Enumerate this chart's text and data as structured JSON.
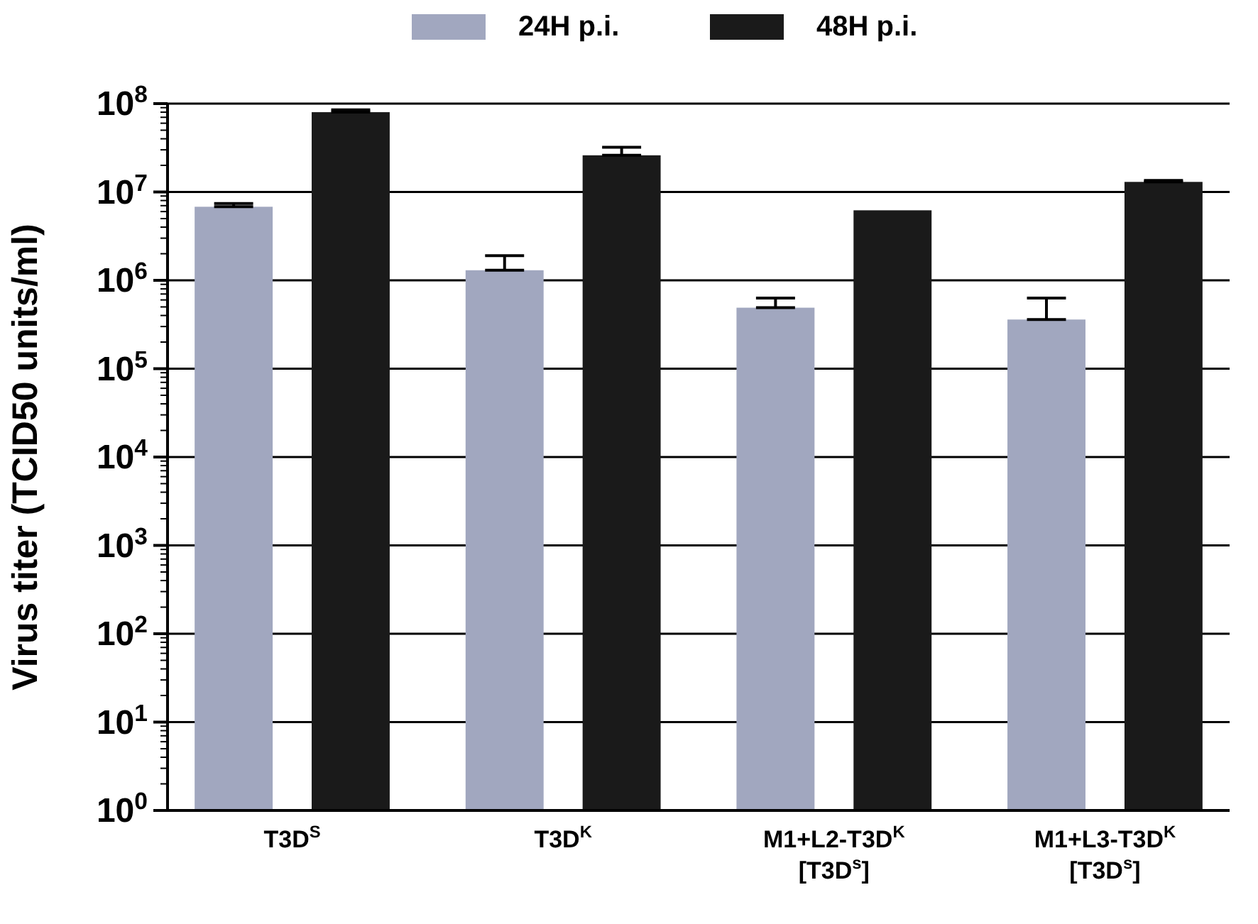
{
  "chart_data": {
    "type": "bar",
    "ylabel": "Virus titer (TCID50 units/ml)",
    "categories": [
      "T3D$^{S}$",
      "T3D$^{K}$",
      "M1+L2-T3D$^{K}$\n[T3D$^{s}$]",
      "M1+L3-T3D$^{K}$\n[T3D$^{s}$]"
    ],
    "series": [
      {
        "name": "24H p.i.",
        "color": "#a1a7bf",
        "values": [
          6800000,
          1300000,
          490000,
          360000
        ],
        "errors": [
          [
            6800000,
            7400000
          ],
          [
            1300000,
            1900000
          ],
          [
            490000,
            630000
          ],
          [
            360000,
            630000
          ]
        ]
      },
      {
        "name": "48H p.i.",
        "color": "#1a1a1a",
        "values": [
          80000000,
          26000000,
          6200000,
          13000000
        ],
        "errors": [
          [
            80000000,
            85000000
          ],
          [
            26000000,
            32000000
          ],
          null,
          [
            13000000,
            13500000
          ]
        ]
      }
    ],
    "log": true,
    "ylim": [
      1,
      100000000
    ],
    "yticks": [
      {
        "value": 1,
        "label": "10$^{0}$"
      },
      {
        "value": 10,
        "label": "10$^{1}$"
      },
      {
        "value": 100,
        "label": "10$^{2}$"
      },
      {
        "value": 1000,
        "label": "10$^{3}$"
      },
      {
        "value": 10000,
        "label": "10$^{4}$"
      },
      {
        "value": 100000,
        "label": "10$^{5}$"
      },
      {
        "value": 1000000,
        "label": "10$^{6}$"
      },
      {
        "value": 10000000,
        "label": "10$^{7}$"
      },
      {
        "value": 100000000,
        "label": "10$^{8}$"
      }
    ],
    "grid": "y",
    "legend": "top"
  }
}
